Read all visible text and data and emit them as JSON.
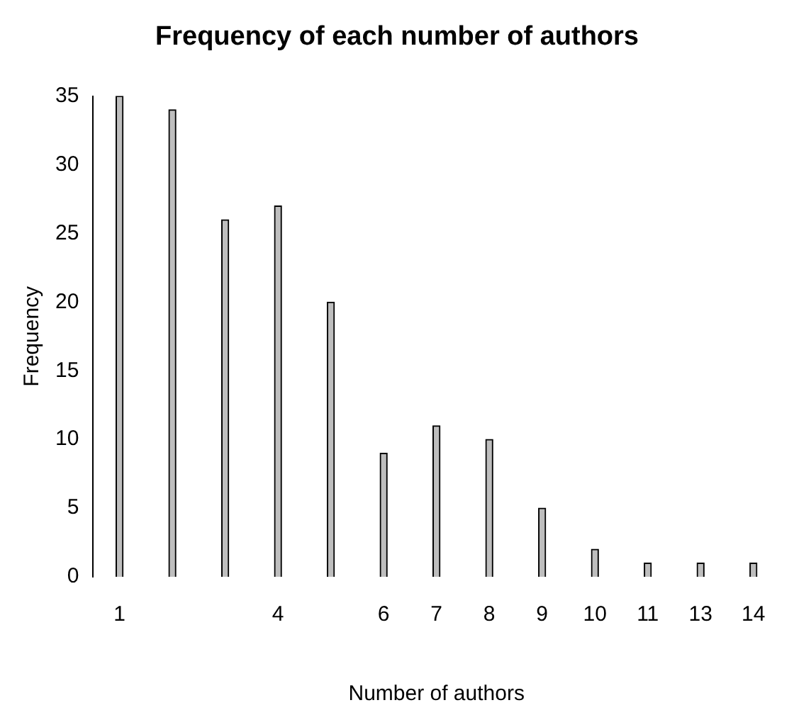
{
  "chart_data": {
    "type": "bar",
    "title": "Frequency of each number of authors",
    "xlabel": "Number of authors",
    "ylabel": "Frequency",
    "categories": [
      "1",
      null,
      null,
      "4",
      null,
      "6",
      "7",
      "8",
      "9",
      "10",
      "11",
      "13",
      "14"
    ],
    "values": [
      35,
      34,
      26,
      27,
      20,
      9,
      11,
      10,
      5,
      2,
      1,
      1,
      1
    ],
    "color": "#bebebe",
    "ylim": [
      0,
      35
    ],
    "yticks": [
      0,
      5,
      10,
      15,
      20,
      25,
      30,
      35
    ],
    "grid": false
  }
}
